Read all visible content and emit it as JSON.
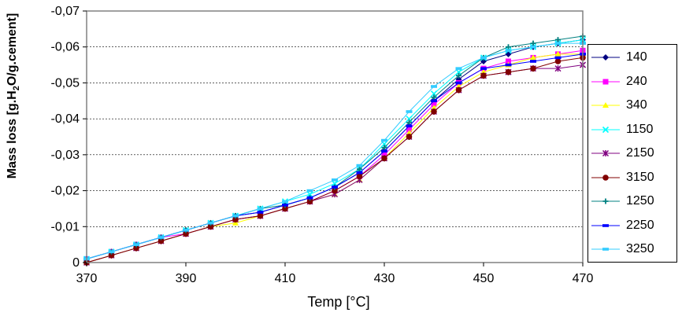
{
  "chart_data": {
    "type": "line",
    "xlabel": "Temp [°C]",
    "ylabel_parts": {
      "pre": "Mass loss  [g.H",
      "sub": "2",
      "post": "O/g.cement]"
    },
    "xlim": [
      370,
      470
    ],
    "ylim": [
      0,
      -0.07
    ],
    "x_ticks": [
      "370",
      "390",
      "410",
      "430",
      "450",
      "470"
    ],
    "x_tick_values": [
      370,
      390,
      410,
      430,
      450,
      470
    ],
    "y_ticks": [
      "0",
      "-0,01",
      "-0,02",
      "-0,03",
      "-0,04",
      "-0,05",
      "-0,06",
      "-0,07"
    ],
    "y_tick_values": [
      0,
      -0.01,
      -0.02,
      -0.03,
      -0.04,
      -0.05,
      -0.06,
      -0.07
    ],
    "grid": "horizontal dashed",
    "legend_position": "right",
    "series": [
      {
        "name": "140",
        "color": "#000080",
        "marker": "diamond",
        "x": [
          370,
          375,
          380,
          385,
          390,
          395,
          400,
          405,
          410,
          415,
          420,
          425,
          430,
          435,
          440,
          445,
          450,
          455,
          460,
          465,
          470
        ],
        "y": [
          -0.001,
          -0.003,
          -0.005,
          -0.007,
          -0.009,
          -0.011,
          -0.013,
          -0.014,
          -0.016,
          -0.018,
          -0.021,
          -0.025,
          -0.031,
          -0.038,
          -0.045,
          -0.051,
          -0.056,
          -0.058,
          -0.06,
          -0.061,
          -0.062
        ]
      },
      {
        "name": "240",
        "color": "#FF00FF",
        "marker": "square",
        "x": [
          370,
          375,
          380,
          385,
          390,
          395,
          400,
          405,
          410,
          415,
          420,
          425,
          430,
          435,
          440,
          445,
          450,
          455,
          460,
          465,
          470
        ],
        "y": [
          -0.001,
          -0.003,
          -0.005,
          -0.007,
          -0.008,
          -0.01,
          -0.012,
          -0.013,
          -0.015,
          -0.017,
          -0.02,
          -0.024,
          -0.03,
          -0.037,
          -0.044,
          -0.05,
          -0.054,
          -0.056,
          -0.057,
          -0.058,
          -0.059
        ]
      },
      {
        "name": "340",
        "color": "#FFFF00",
        "marker": "triangle",
        "x": [
          370,
          375,
          380,
          385,
          390,
          395,
          400,
          405,
          410,
          415,
          420,
          425,
          430,
          435,
          440,
          445,
          450,
          455,
          460,
          465,
          470
        ],
        "y": [
          0,
          -0.002,
          -0.004,
          -0.006,
          -0.008,
          -0.01,
          -0.011,
          -0.013,
          -0.015,
          -0.017,
          -0.019,
          -0.023,
          -0.029,
          -0.036,
          -0.043,
          -0.049,
          -0.053,
          -0.055,
          -0.057,
          -0.058,
          -0.058
        ]
      },
      {
        "name": "1150",
        "color": "#00FFFF",
        "marker": "x",
        "x": [
          370,
          375,
          380,
          385,
          390,
          395,
          400,
          405,
          410,
          415,
          420,
          425,
          430,
          435,
          440,
          445,
          450,
          455,
          460,
          465,
          470
        ],
        "y": [
          -0.001,
          -0.003,
          -0.005,
          -0.007,
          -0.009,
          -0.011,
          -0.013,
          -0.015,
          -0.017,
          -0.019,
          -0.022,
          -0.026,
          -0.033,
          -0.04,
          -0.047,
          -0.053,
          -0.057,
          -0.059,
          -0.06,
          -0.061,
          -0.062
        ]
      },
      {
        "name": "2150",
        "color": "#800080",
        "marker": "star",
        "x": [
          370,
          375,
          380,
          385,
          390,
          395,
          400,
          405,
          410,
          415,
          420,
          425,
          430,
          435,
          440,
          445,
          450,
          455,
          460,
          465,
          470
        ],
        "y": [
          0,
          -0.002,
          -0.004,
          -0.006,
          -0.008,
          -0.01,
          -0.012,
          -0.013,
          -0.015,
          -0.017,
          -0.019,
          -0.023,
          -0.029,
          -0.035,
          -0.042,
          -0.048,
          -0.052,
          -0.053,
          -0.054,
          -0.054,
          -0.055
        ]
      },
      {
        "name": "3150",
        "color": "#800000",
        "marker": "circle",
        "x": [
          370,
          375,
          380,
          385,
          390,
          395,
          400,
          405,
          410,
          415,
          420,
          425,
          430,
          435,
          440,
          445,
          450,
          455,
          460,
          465,
          470
        ],
        "y": [
          0,
          -0.002,
          -0.004,
          -0.006,
          -0.008,
          -0.01,
          -0.012,
          -0.013,
          -0.015,
          -0.017,
          -0.02,
          -0.024,
          -0.029,
          -0.035,
          -0.042,
          -0.048,
          -0.052,
          -0.053,
          -0.054,
          -0.056,
          -0.057
        ]
      },
      {
        "name": "1250",
        "color": "#008080",
        "marker": "plus",
        "x": [
          370,
          375,
          380,
          385,
          390,
          395,
          400,
          405,
          410,
          415,
          420,
          425,
          430,
          435,
          440,
          445,
          450,
          455,
          460,
          465,
          470
        ],
        "y": [
          -0.001,
          -0.003,
          -0.005,
          -0.007,
          -0.009,
          -0.011,
          -0.013,
          -0.015,
          -0.016,
          -0.018,
          -0.021,
          -0.026,
          -0.032,
          -0.039,
          -0.046,
          -0.052,
          -0.057,
          -0.06,
          -0.061,
          -0.062,
          -0.063
        ]
      },
      {
        "name": "2250",
        "color": "#0000FF",
        "marker": "dash",
        "x": [
          370,
          375,
          380,
          385,
          390,
          395,
          400,
          405,
          410,
          415,
          420,
          425,
          430,
          435,
          440,
          445,
          450,
          455,
          460,
          465,
          470
        ],
        "y": [
          -0.001,
          -0.003,
          -0.005,
          -0.007,
          -0.009,
          -0.011,
          -0.013,
          -0.014,
          -0.016,
          -0.018,
          -0.021,
          -0.025,
          -0.031,
          -0.038,
          -0.045,
          -0.05,
          -0.054,
          -0.055,
          -0.056,
          -0.057,
          -0.058
        ]
      },
      {
        "name": "3250",
        "color": "#33CCFF",
        "marker": "dash",
        "x": [
          370,
          375,
          380,
          385,
          390,
          395,
          400,
          405,
          410,
          415,
          420,
          425,
          430,
          435,
          440,
          445,
          450,
          455,
          460,
          465,
          470
        ],
        "y": [
          -0.001,
          -0.003,
          -0.005,
          -0.007,
          -0.009,
          -0.011,
          -0.013,
          -0.015,
          -0.017,
          -0.02,
          -0.023,
          -0.027,
          -0.034,
          -0.042,
          -0.049,
          -0.054,
          -0.057,
          -0.059,
          -0.06,
          -0.061,
          -0.061
        ]
      }
    ]
  }
}
